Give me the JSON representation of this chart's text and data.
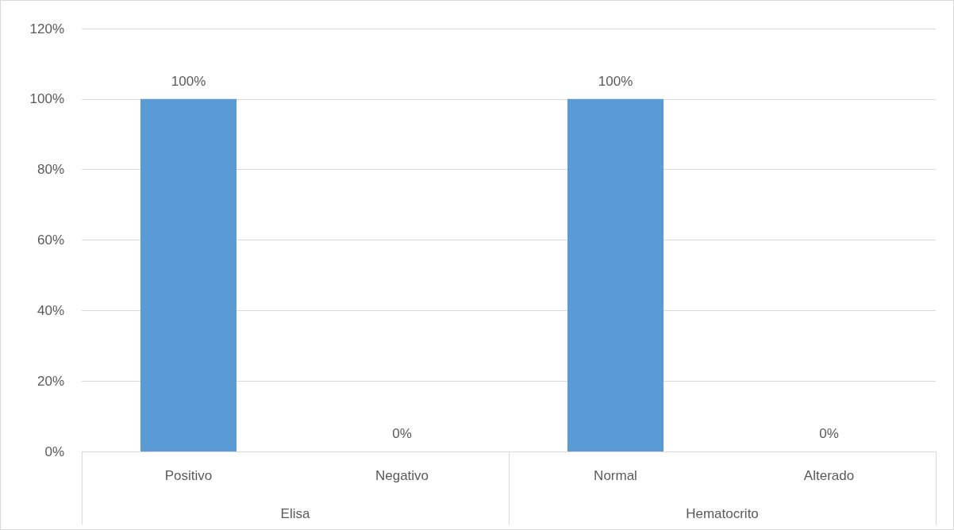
{
  "chart_data": {
    "type": "bar",
    "categories": [
      "Positivo",
      "Negativo",
      "Normal",
      "Alterado"
    ],
    "values": [
      100,
      0,
      100,
      0
    ],
    "value_labels": [
      "100%",
      "0%",
      "100%",
      "0%"
    ],
    "color": "#5b9bd5",
    "ylim": [
      0,
      120
    ],
    "yticks": [
      {
        "value": 0,
        "label": "0%"
      },
      {
        "value": 20,
        "label": "20%"
      },
      {
        "value": 40,
        "label": "40%"
      },
      {
        "value": 60,
        "label": "60%"
      },
      {
        "value": 80,
        "label": "80%"
      },
      {
        "value": 100,
        "label": "100%"
      },
      {
        "value": 120,
        "label": "120%"
      }
    ],
    "annotations": [
      "Elisa",
      "Hematocrito"
    ],
    "grid": "y"
  }
}
